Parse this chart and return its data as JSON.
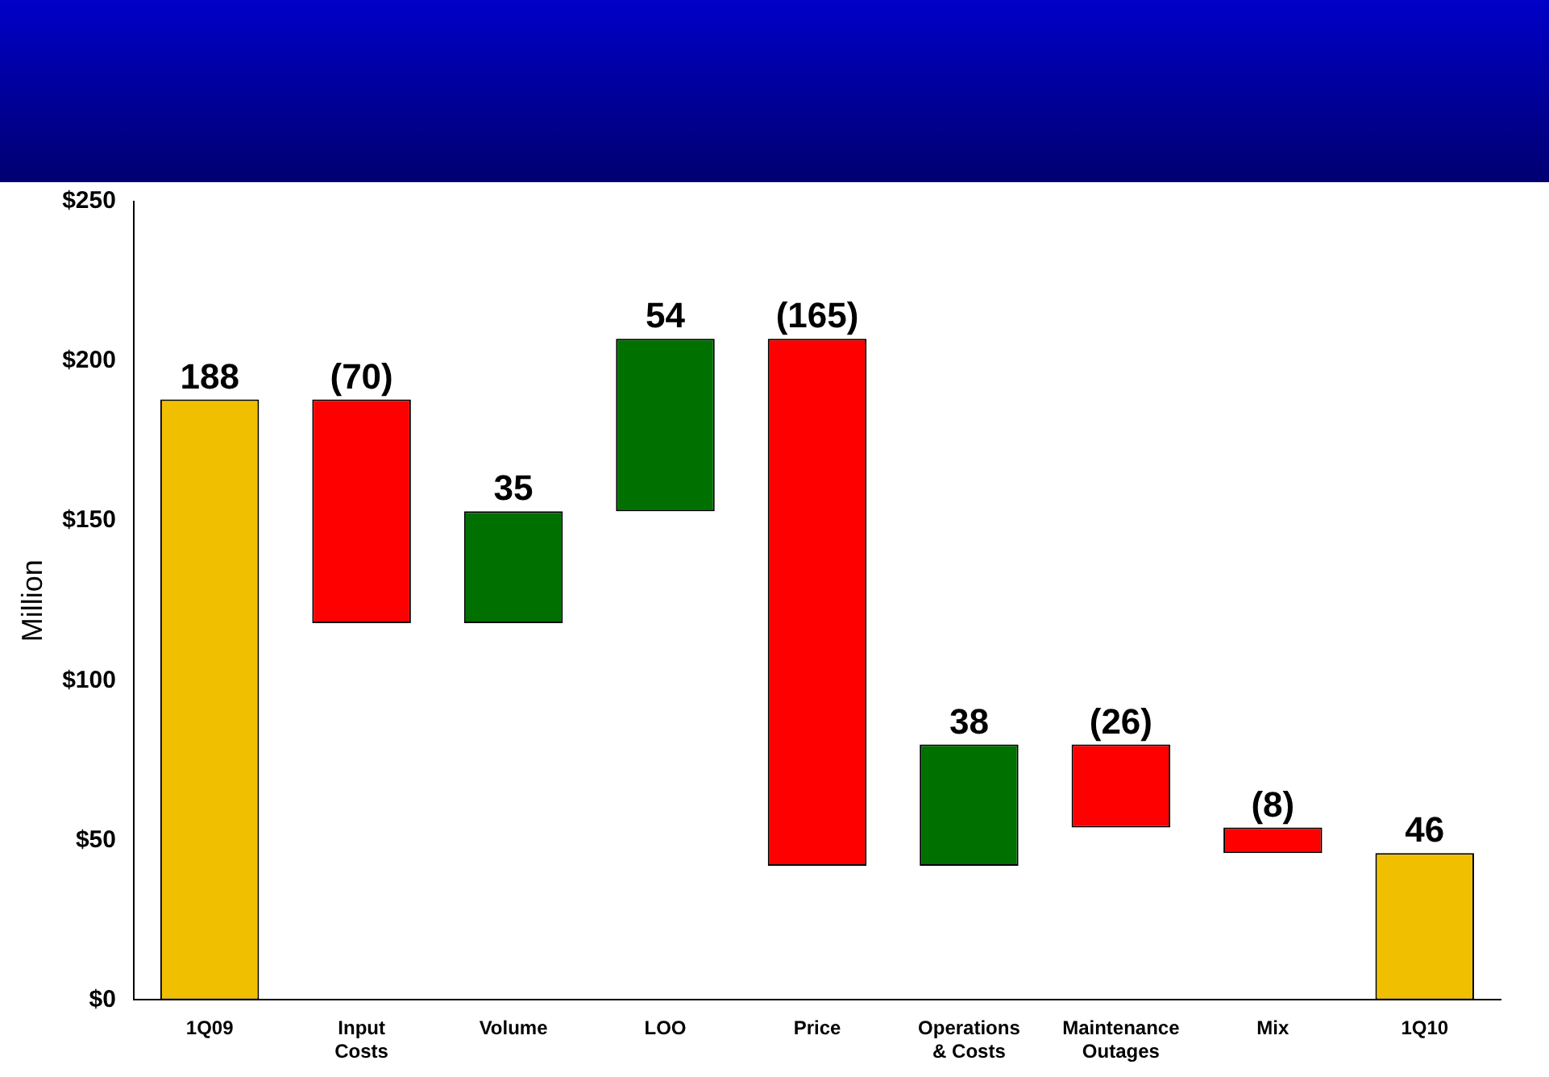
{
  "chart_data": {
    "type": "bar",
    "ylabel": "Million",
    "categories": [
      "1Q09",
      "Input\nCosts",
      "Volume",
      "LOO",
      "Price",
      "Operations\n& Costs",
      "Maintenance\nOutages",
      "Mix",
      "1Q10"
    ],
    "values": [
      188,
      -70,
      35,
      54,
      -165,
      38,
      -26,
      -8,
      46
    ],
    "base": [
      0,
      188,
      118,
      153,
      207,
      42,
      80,
      54,
      0
    ],
    "colors": [
      "#f0c000",
      "#ff0000",
      "#007000",
      "#007000",
      "#ff0000",
      "#007000",
      "#ff0000",
      "#ff0000",
      "#f0c000"
    ],
    "value_labels": [
      "188",
      "(70)",
      "35",
      "54",
      "(165)",
      "38",
      "(26)",
      "(8)",
      "46"
    ],
    "ylim": [
      0,
      250
    ],
    "yticks": [
      {
        "value": 0,
        "label": "$0"
      },
      {
        "value": 50,
        "label": "$50"
      },
      {
        "value": 100,
        "label": "$100"
      },
      {
        "value": 150,
        "label": "$150"
      },
      {
        "value": 200,
        "label": "$200"
      },
      {
        "value": 250,
        "label": "$250"
      }
    ],
    "grid": false,
    "legend": false
  }
}
